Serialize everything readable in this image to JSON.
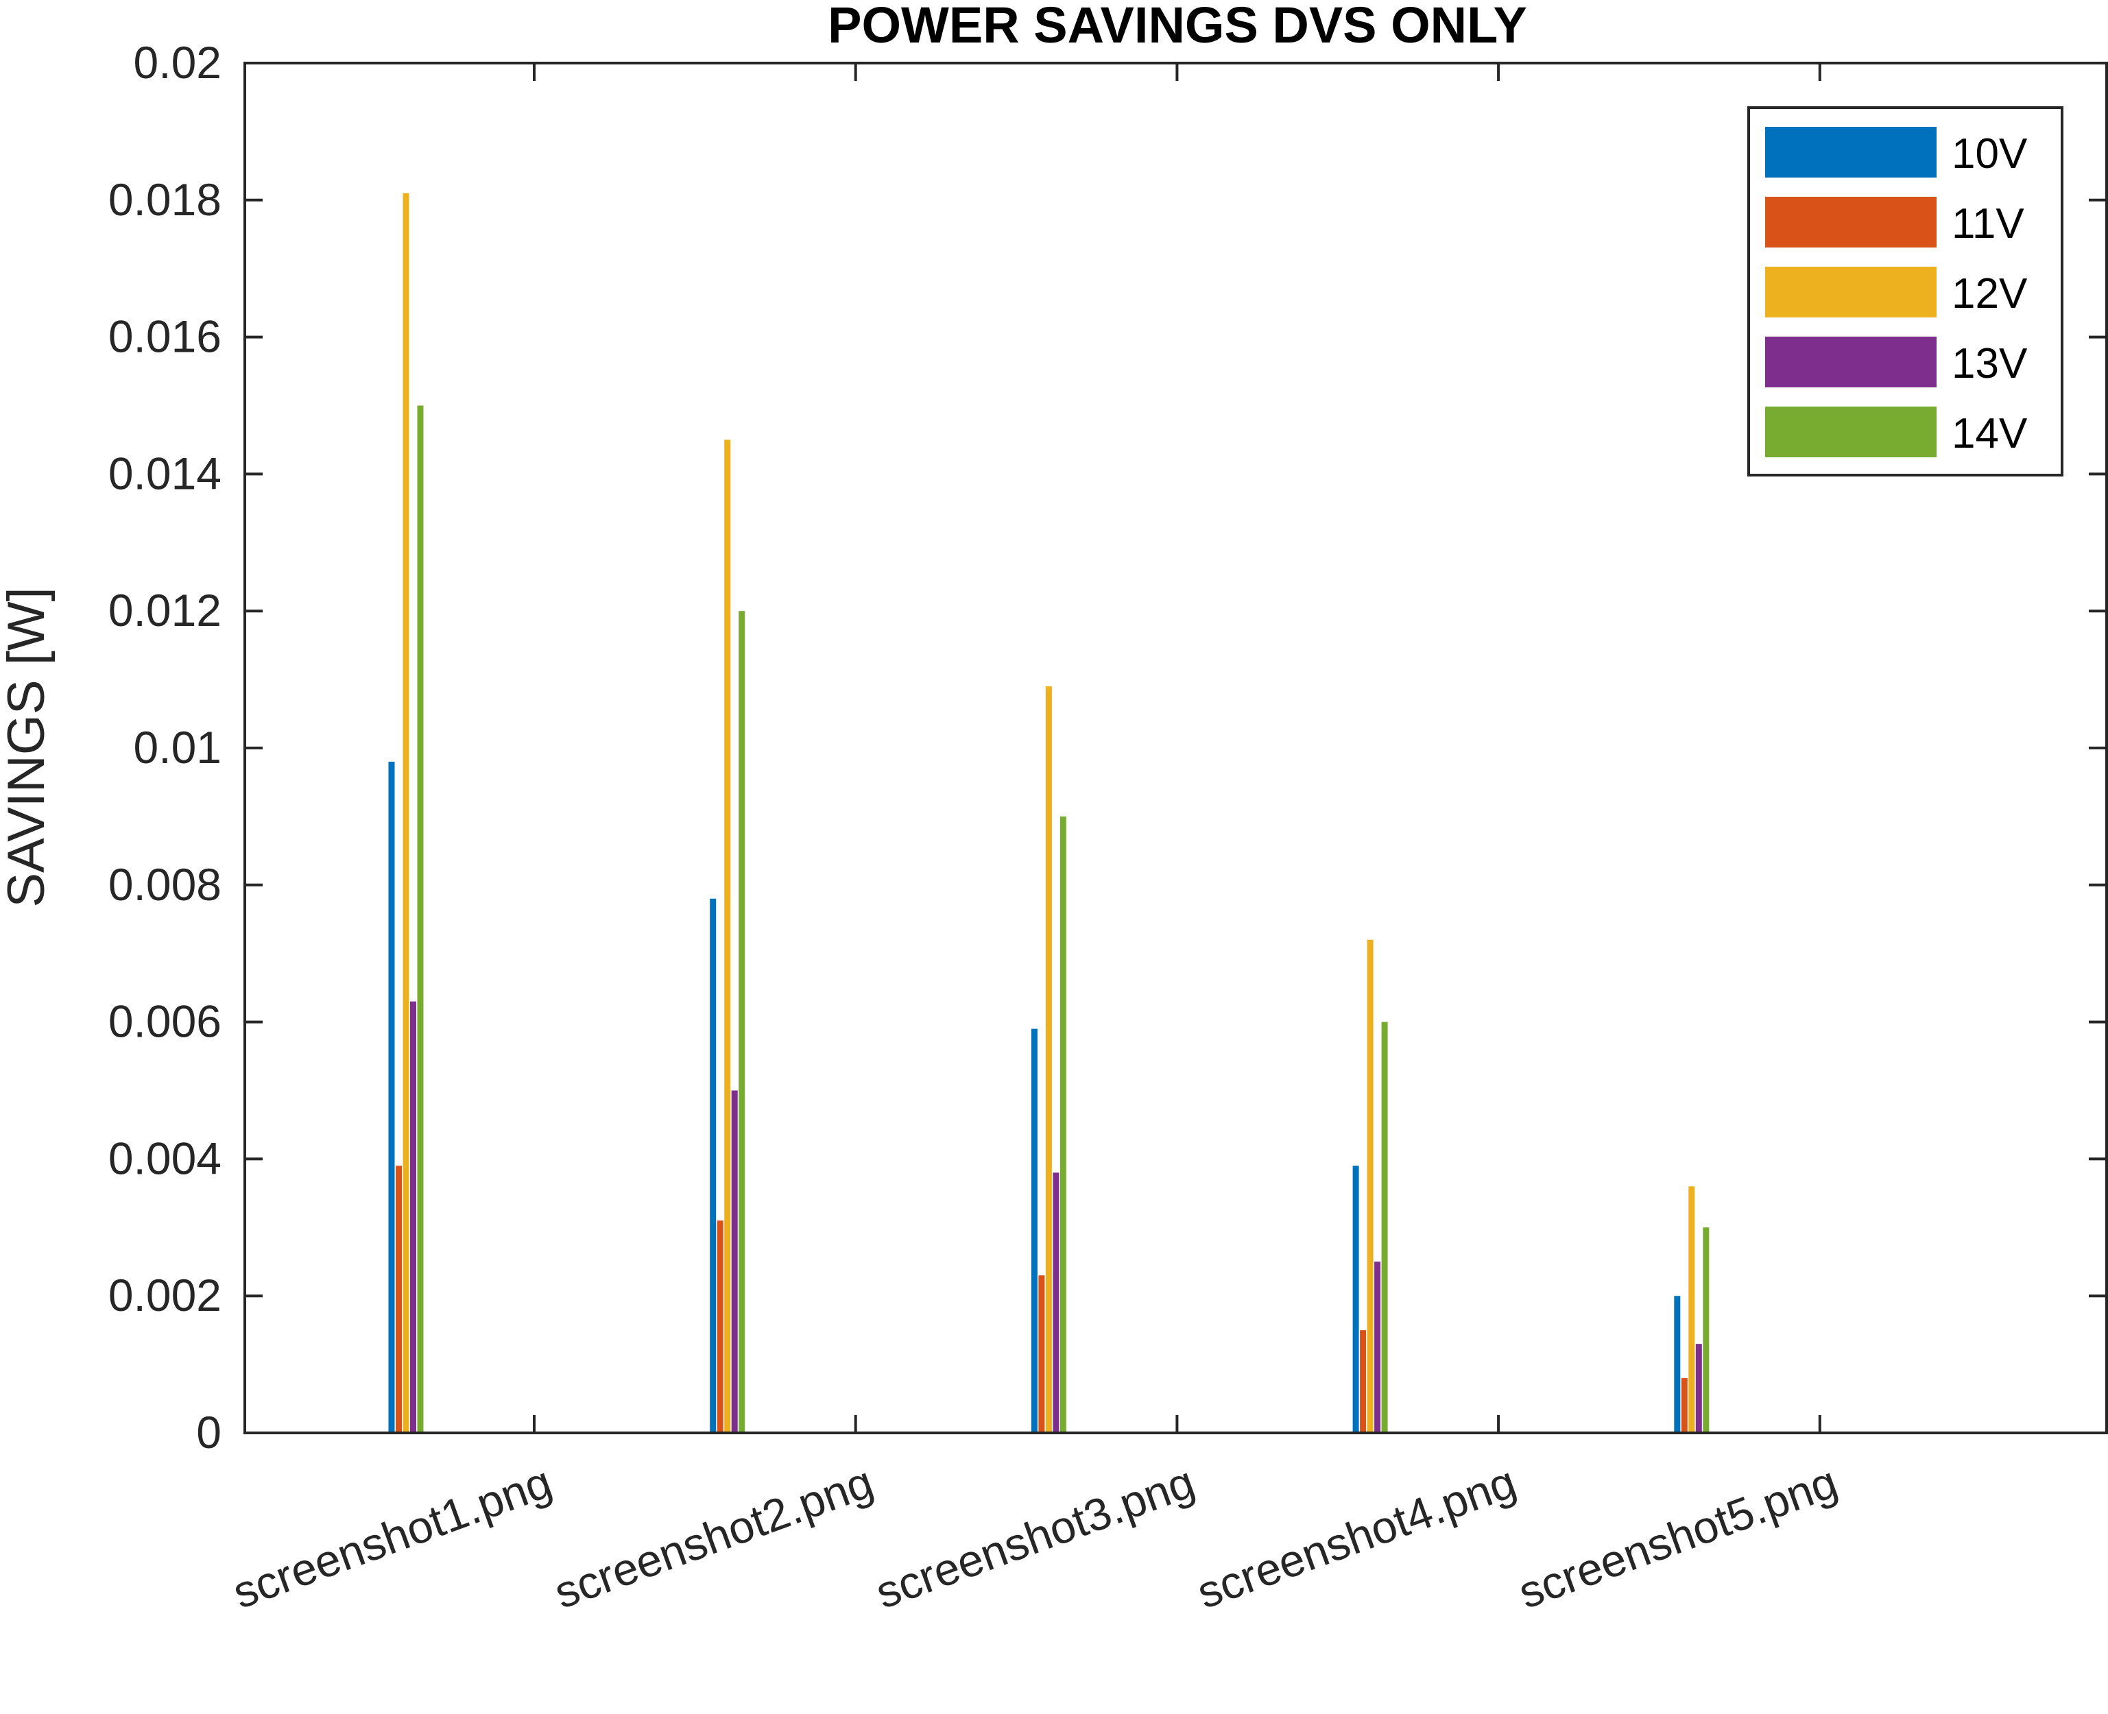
{
  "chart_data": {
    "type": "bar",
    "title": "POWER SAVINGS DVS ONLY",
    "xlabel": "",
    "ylabel": "SAVINGS  [W]",
    "categories": [
      "screenshot1.png",
      "screenshot2.png",
      "screenshot3.png",
      "screenshot4.png",
      "screenshot5.png"
    ],
    "ylim": [
      0,
      0.02
    ],
    "yticks": [
      "0",
      "0.002",
      "0.004",
      "0.006",
      "0.008",
      "0.01",
      "0.012",
      "0.014",
      "0.016",
      "0.018",
      "0.02"
    ],
    "legend_position": "top-right",
    "grid": false,
    "series": [
      {
        "name": "10V",
        "color": "#0072BD",
        "values": [
          0.0098,
          0.0078,
          0.0059,
          0.0039,
          0.002
        ]
      },
      {
        "name": "11V",
        "color": "#D95319",
        "values": [
          0.0039,
          0.0031,
          0.0023,
          0.0015,
          0.0008
        ]
      },
      {
        "name": "12V",
        "color": "#EDB120",
        "values": [
          0.0181,
          0.0145,
          0.0109,
          0.0072,
          0.0036
        ]
      },
      {
        "name": "13V",
        "color": "#7E2F8E",
        "values": [
          0.0063,
          0.005,
          0.0038,
          0.0025,
          0.0013
        ]
      },
      {
        "name": "14V",
        "color": "#77AC30",
        "values": [
          0.015,
          0.012,
          0.009,
          0.006,
          0.003
        ]
      }
    ]
  }
}
